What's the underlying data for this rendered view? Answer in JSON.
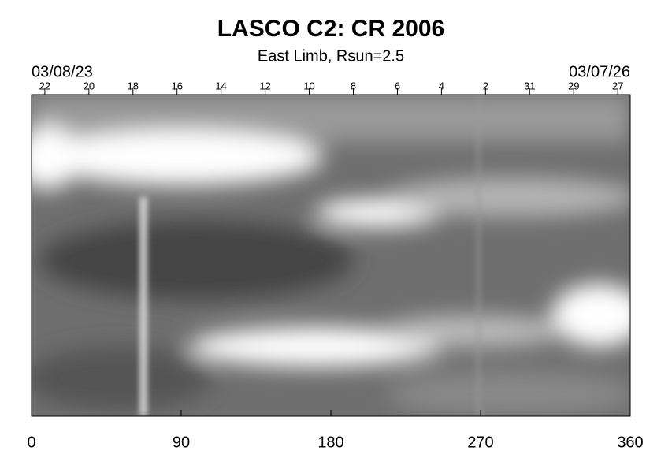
{
  "chart_data": {
    "type": "image",
    "title": "LASCO C2: CR 2006",
    "subtitle": "East Limb, Rsun=2.5",
    "start_date": "03/08/23",
    "end_date": "03/07/26",
    "xlim": [
      0,
      360
    ],
    "xticks": [
      0,
      90,
      180,
      270,
      360
    ],
    "x2ticks": [
      {
        "value": 8,
        "label": "22"
      },
      {
        "value": 34.5,
        "label": "20"
      },
      {
        "value": 61,
        "label": "18"
      },
      {
        "value": 87.5,
        "label": "16"
      },
      {
        "value": 114,
        "label": "14"
      },
      {
        "value": 140.5,
        "label": "12"
      },
      {
        "value": 167,
        "label": "10"
      },
      {
        "value": 193.5,
        "label": "8"
      },
      {
        "value": 220,
        "label": "6"
      },
      {
        "value": 246.5,
        "label": "4"
      },
      {
        "value": 273,
        "label": "2"
      },
      {
        "value": 299.5,
        "label": "31"
      },
      {
        "value": 326,
        "label": "29"
      },
      {
        "value": 352.5,
        "label": "27"
      }
    ]
  }
}
